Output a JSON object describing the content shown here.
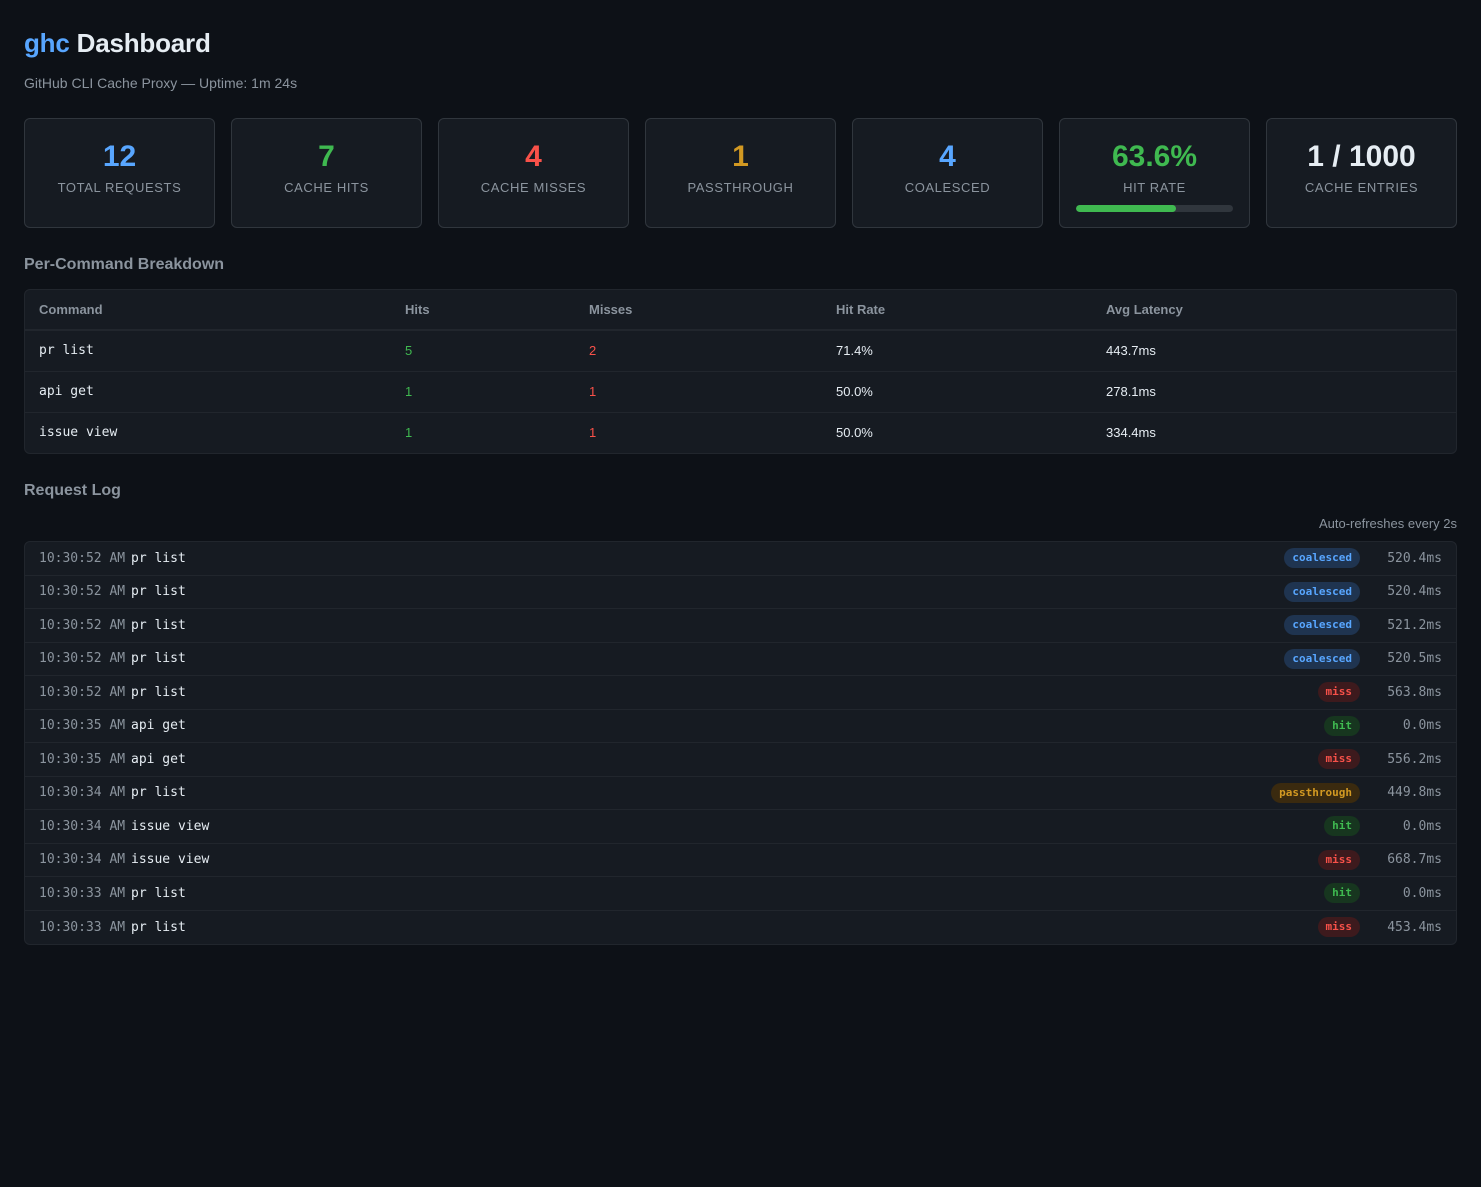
{
  "header": {
    "brand": "ghc",
    "title": "Dashboard",
    "subtitle": "GitHub CLI Cache Proxy — Uptime: 1m 24s"
  },
  "colors": {
    "background": "#0d1117",
    "card": "#161b22",
    "accent_blue": "#58a6ff",
    "green": "#3fb950",
    "red": "#f85149",
    "amber": "#d29922"
  },
  "stats": [
    {
      "value": "12",
      "label": "TOTAL REQUESTS",
      "color": "#58a6ff"
    },
    {
      "value": "7",
      "label": "CACHE HITS",
      "color": "#3fb950"
    },
    {
      "value": "4",
      "label": "CACHE MISSES",
      "color": "#f85149"
    },
    {
      "value": "1",
      "label": "PASSTHROUGH",
      "color": "#d29922"
    },
    {
      "value": "4",
      "label": "COALESCED",
      "color": "#58a6ff"
    },
    {
      "value": "63.6%",
      "label": "HIT RATE",
      "color": "#3fb950",
      "progress": 0.636
    },
    {
      "value": "1 / 1000",
      "label": "CACHE ENTRIES",
      "color": "#e6edf3"
    }
  ],
  "breakdown": {
    "title": "Per-Command Breakdown",
    "columns": [
      "Command",
      "Hits",
      "Misses",
      "Hit Rate",
      "Avg Latency"
    ],
    "rows": [
      {
        "command": "pr list",
        "hits": "5",
        "misses": "2",
        "hit_rate": "71.4%",
        "avg_latency": "443.7ms"
      },
      {
        "command": "api get",
        "hits": "1",
        "misses": "1",
        "hit_rate": "50.0%",
        "avg_latency": "278.1ms"
      },
      {
        "command": "issue view",
        "hits": "1",
        "misses": "1",
        "hit_rate": "50.0%",
        "avg_latency": "334.4ms"
      }
    ]
  },
  "log": {
    "title": "Request Log",
    "auto_refresh": "Auto-refreshes every 2s",
    "entries": [
      {
        "time": "10:30:52 AM",
        "command": "pr list",
        "status": "coalesced",
        "latency": "520.4ms"
      },
      {
        "time": "10:30:52 AM",
        "command": "pr list",
        "status": "coalesced",
        "latency": "520.4ms"
      },
      {
        "time": "10:30:52 AM",
        "command": "pr list",
        "status": "coalesced",
        "latency": "521.2ms"
      },
      {
        "time": "10:30:52 AM",
        "command": "pr list",
        "status": "coalesced",
        "latency": "520.5ms"
      },
      {
        "time": "10:30:52 AM",
        "command": "pr list",
        "status": "miss",
        "latency": "563.8ms"
      },
      {
        "time": "10:30:35 AM",
        "command": "api get",
        "status": "hit",
        "latency": "0.0ms"
      },
      {
        "time": "10:30:35 AM",
        "command": "api get",
        "status": "miss",
        "latency": "556.2ms"
      },
      {
        "time": "10:30:34 AM",
        "command": "pr list",
        "status": "passthrough",
        "latency": "449.8ms"
      },
      {
        "time": "10:30:34 AM",
        "command": "issue view",
        "status": "hit",
        "latency": "0.0ms"
      },
      {
        "time": "10:30:34 AM",
        "command": "issue view",
        "status": "miss",
        "latency": "668.7ms"
      },
      {
        "time": "10:30:33 AM",
        "command": "pr list",
        "status": "hit",
        "latency": "0.0ms"
      },
      {
        "time": "10:30:33 AM",
        "command": "pr list",
        "status": "miss",
        "latency": "453.4ms"
      }
    ]
  }
}
